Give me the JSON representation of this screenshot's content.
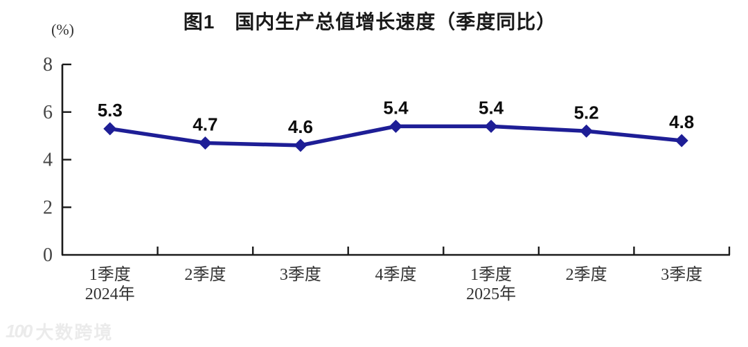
{
  "header": {
    "title": "图1　国内生产总值增长速度（季度同比）",
    "y_unit_label": "(%)"
  },
  "watermark": {
    "logo": "100",
    "text": "大数跨境"
  },
  "chart_data": {
    "type": "line",
    "title": "图1　国内生产总值增长速度（季度同比）",
    "ylabel": "(%)",
    "xlabel": "",
    "categories": [
      [
        "1季度",
        "2024年"
      ],
      [
        "2季度"
      ],
      [
        "3季度"
      ],
      [
        "4季度"
      ],
      [
        "1季度",
        "2025年"
      ],
      [
        "2季度"
      ],
      [
        "3季度"
      ]
    ],
    "values": [
      5.3,
      4.7,
      4.6,
      5.4,
      5.4,
      5.2,
      4.8
    ],
    "data_labels": [
      "5.3",
      "4.7",
      "4.6",
      "5.4",
      "5.4",
      "5.2",
      "4.8"
    ],
    "ylim": [
      0,
      8
    ],
    "yticks": [
      0,
      2,
      4,
      6,
      8
    ],
    "grid": false,
    "legend": "none",
    "line_color": "#1E1E96",
    "marker": "diamond",
    "axis_color": "#1a1a1a",
    "label_color": "#0d0d0d"
  }
}
